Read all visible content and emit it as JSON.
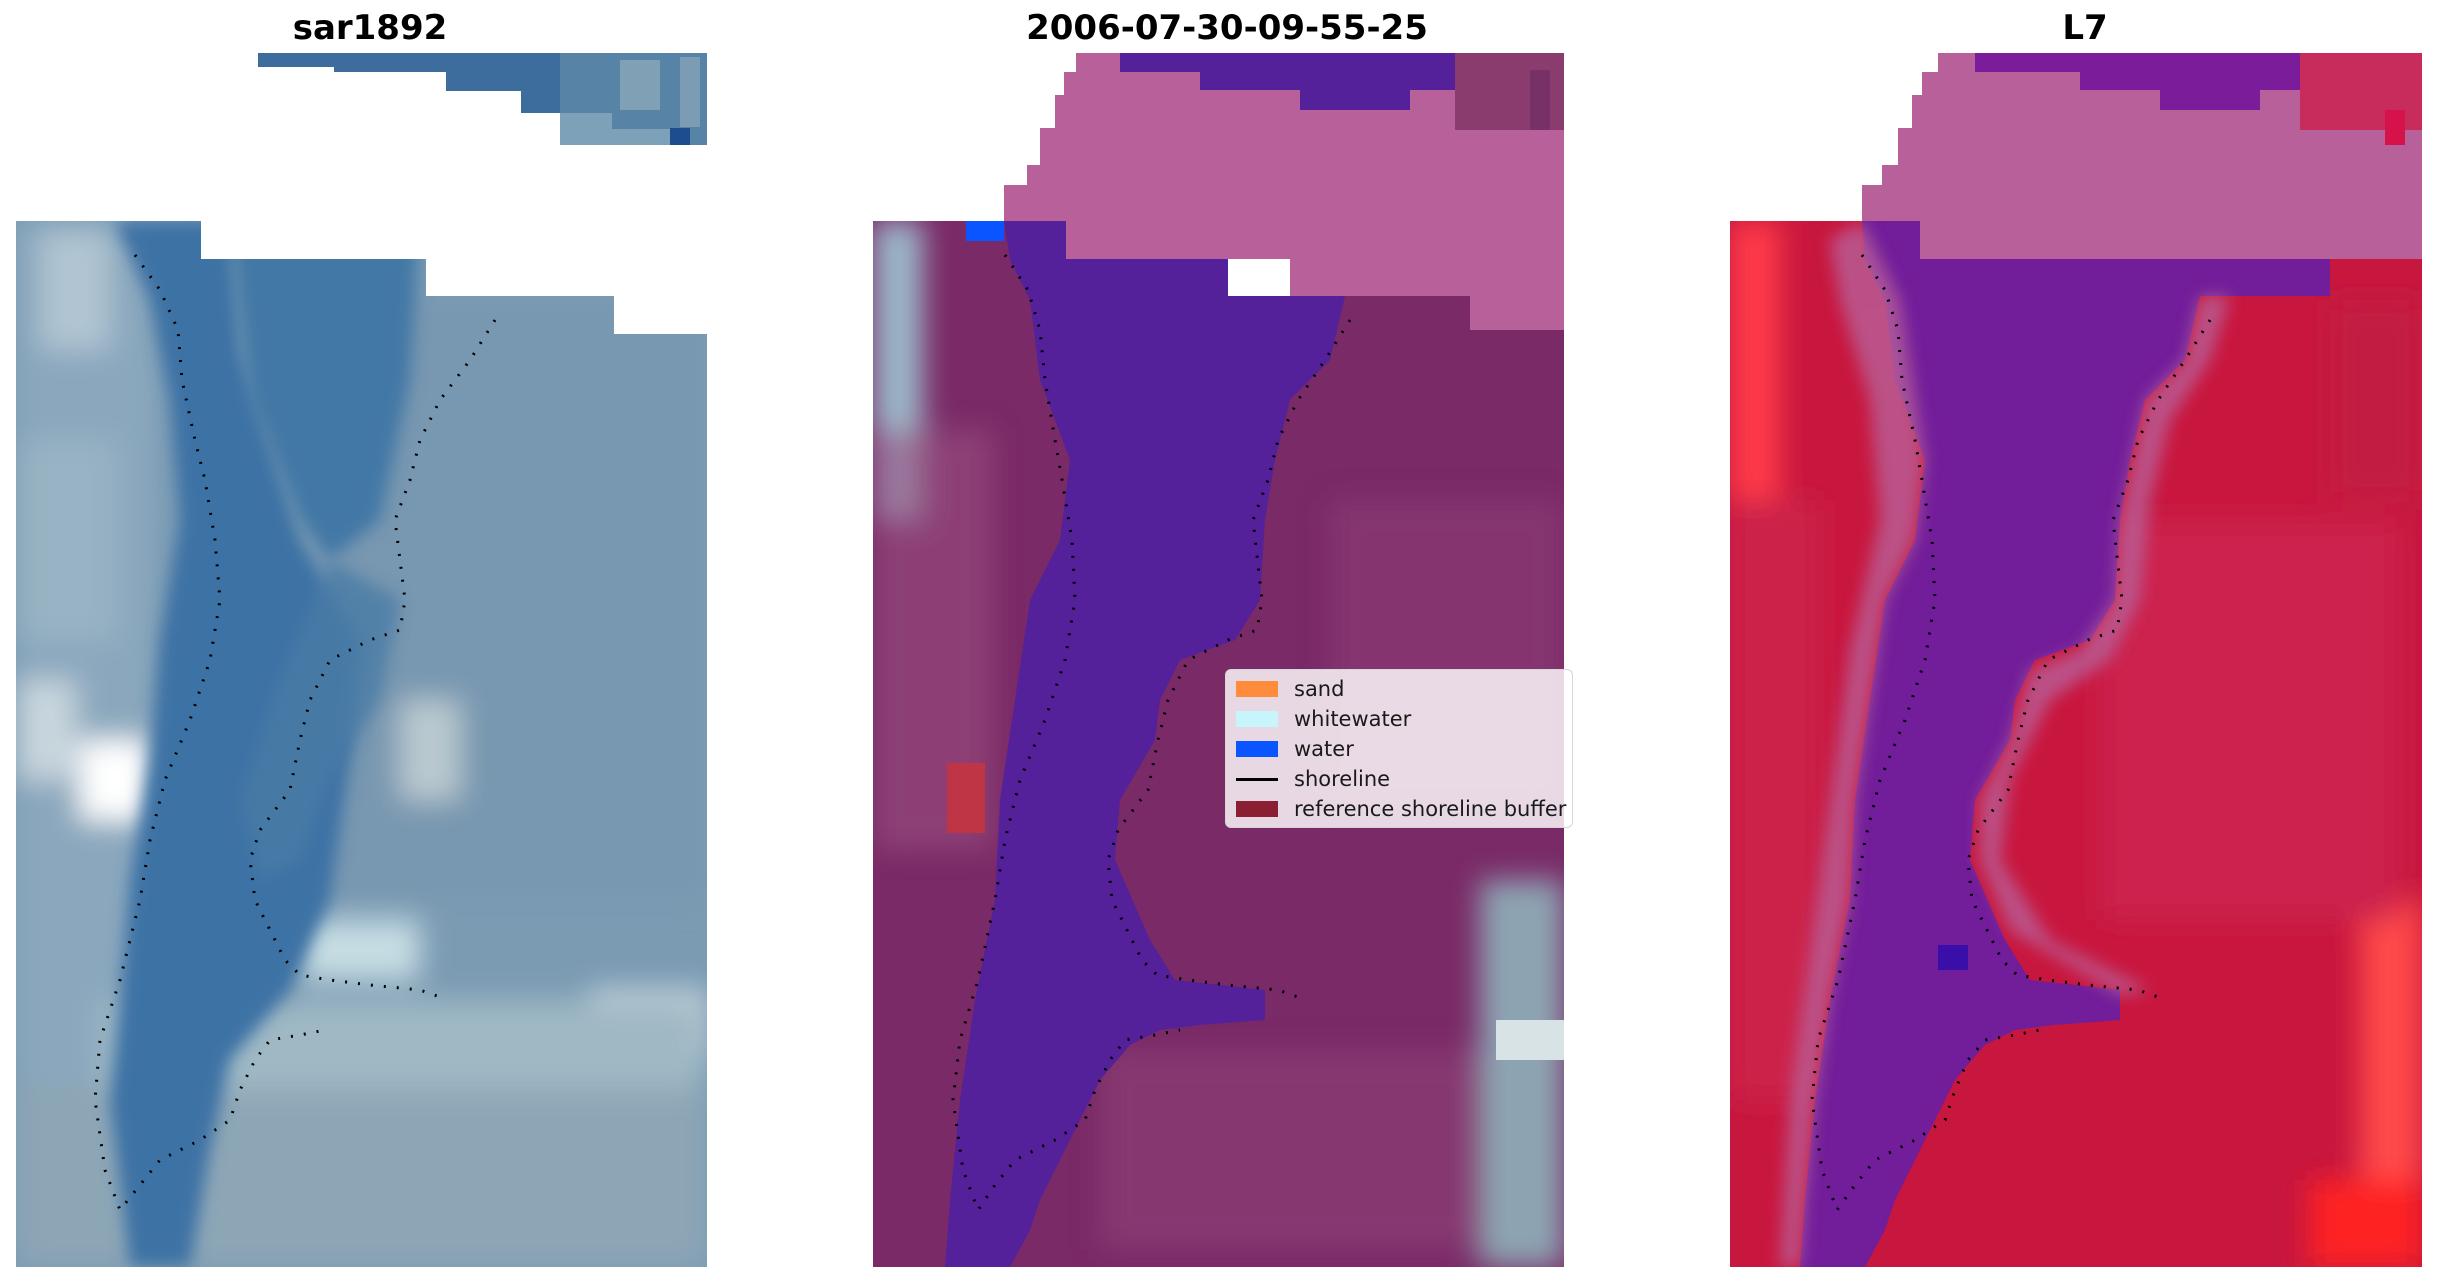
{
  "panels": [
    {
      "title": "sar1892"
    },
    {
      "title": "2006-07-30-09-55-25"
    },
    {
      "title": "L7"
    }
  ],
  "legend": {
    "items": [
      {
        "label": "sand",
        "color": "#ff8c3a",
        "kind": "patch"
      },
      {
        "label": "whitewater",
        "color": "#c8f5fb",
        "kind": "patch"
      },
      {
        "label": "water",
        "color": "#0a55ff",
        "kind": "patch"
      },
      {
        "label": "shoreline",
        "color": "#000000",
        "kind": "line"
      },
      {
        "label": "reference shoreline buffer",
        "color": "#8a1f33",
        "kind": "patch"
      }
    ]
  },
  "colors": {
    "rgb_water": "#3f6f9b",
    "rgb_land": "#7f9db4",
    "class_water": "#54219a",
    "class_land": "#7a2a67",
    "class_buffer_pink": "#b8609a",
    "class_buffer_red": "#c03545",
    "ndwi_red": "#c8173e",
    "ndwi_purple": "#6a1ea2",
    "ndwi_pink": "#b8609a"
  }
}
